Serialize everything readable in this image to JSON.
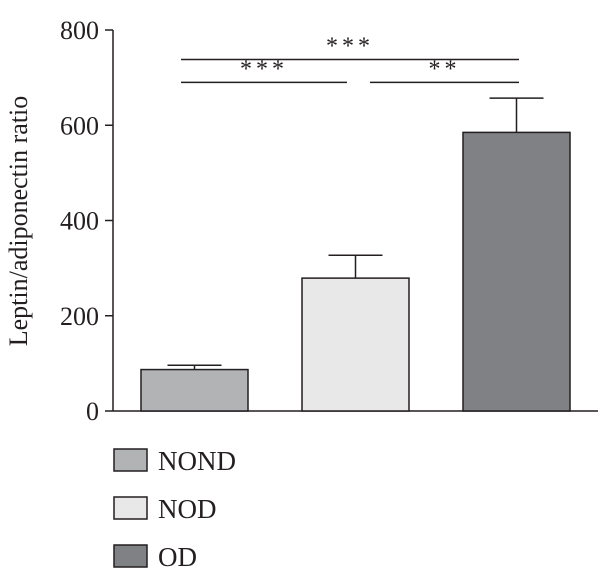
{
  "chart_data": {
    "type": "bar",
    "title": "",
    "xlabel": "",
    "ylabel": "Leptin/adiponectin ratio",
    "ylim": [
      0,
      800
    ],
    "yticks": [
      0,
      200,
      400,
      600,
      800
    ],
    "grid": false,
    "legend_placement": "bottom-left",
    "categories": [
      "NOND",
      "NOD",
      "OD"
    ],
    "values": [
      87,
      279,
      585
    ],
    "errors": [
      9,
      48,
      72
    ],
    "colors": [
      "#b2b3b5",
      "#e8e8e9",
      "#808184"
    ],
    "significance": [
      {
        "from": 0,
        "to": 2,
        "y": 738,
        "label": "***"
      },
      {
        "from": 0,
        "to": 1,
        "y": 690,
        "label": "***"
      },
      {
        "from": 1,
        "to": 2,
        "y": 690,
        "label": "**"
      }
    ]
  }
}
